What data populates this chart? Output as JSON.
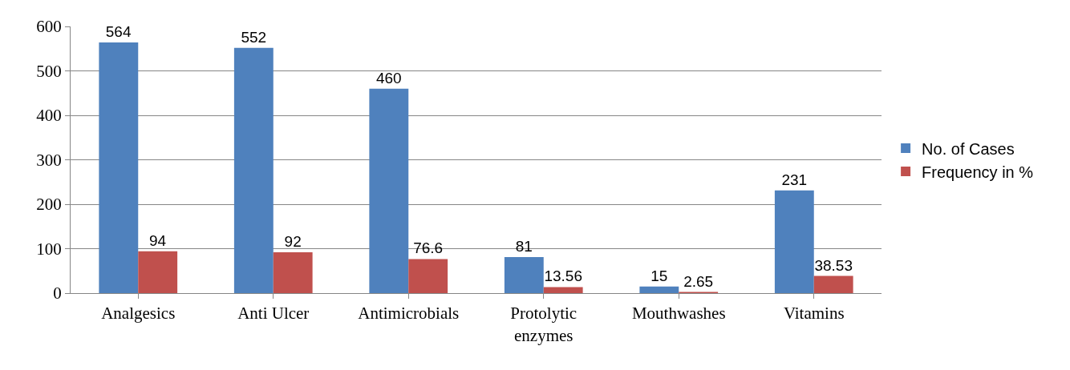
{
  "chart_data": {
    "type": "bar",
    "categories": [
      "Analgesics",
      "Anti Ulcer",
      "Antimicrobials",
      "Protolytic enzymes",
      "Mouthwashes",
      "Vitamins"
    ],
    "series": [
      {
        "name": "No. of Cases",
        "color": "#4f81bd",
        "values": [
          564,
          552,
          460,
          81,
          15,
          231
        ]
      },
      {
        "name": "Frequency in %",
        "color": "#c0504d",
        "values": [
          94,
          92,
          76.6,
          13.56,
          2.65,
          38.53
        ]
      }
    ],
    "ylim": [
      0,
      600
    ],
    "yticks": [
      0,
      100,
      200,
      300,
      400,
      500,
      600
    ],
    "grid": "y",
    "legend": "right",
    "data_labels": true
  }
}
